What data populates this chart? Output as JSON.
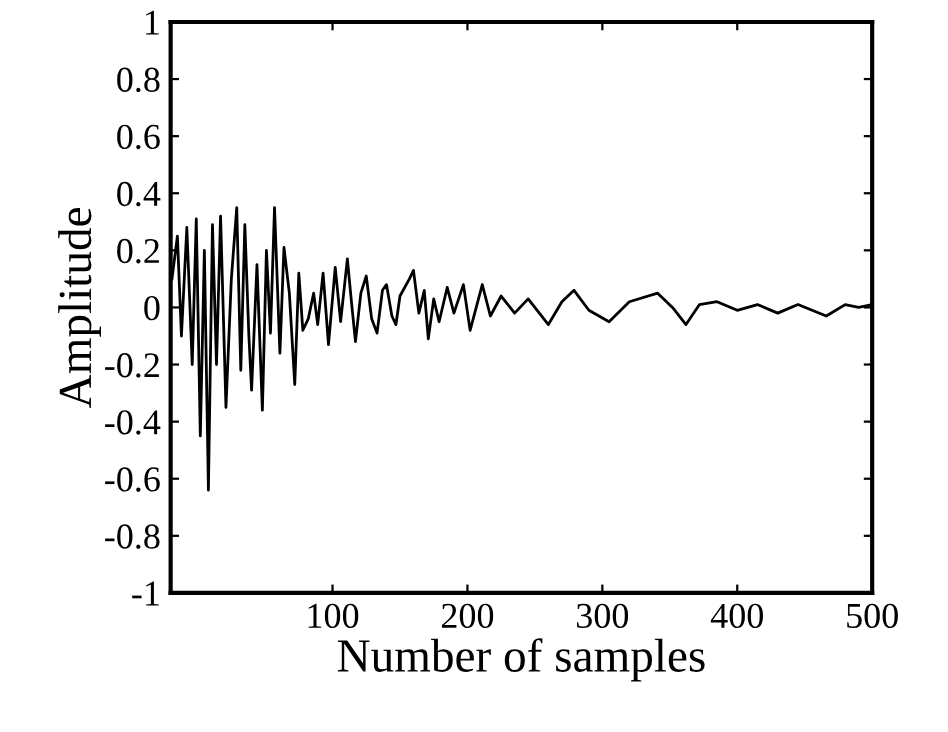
{
  "chart_data": {
    "type": "line",
    "xlabel": "Number of samples",
    "ylabel": "Amplitude",
    "xlim": [
      -20,
      500
    ],
    "ylim": [
      -1,
      1
    ],
    "xticks": [
      100,
      200,
      300,
      400,
      500
    ],
    "yticks": [
      -1,
      -0.8,
      -0.6,
      -0.4,
      -0.2,
      0,
      0.2,
      0.4,
      0.6,
      0.8,
      1
    ],
    "grid": false,
    "series": [
      {
        "color": "#000000",
        "x": [
          -19,
          -15,
          -12,
          -8,
          -4,
          -1,
          2,
          5,
          8,
          11,
          14,
          17,
          21,
          25,
          29,
          32,
          35,
          38,
          40,
          44,
          48,
          51,
          54,
          57,
          61,
          64,
          68,
          72,
          75,
          78,
          82,
          86,
          89,
          93,
          97,
          102,
          106,
          111,
          114,
          117,
          121,
          125,
          129,
          133,
          137,
          140,
          144,
          147,
          150,
          157,
          160,
          164,
          168,
          171,
          175,
          179,
          185,
          190,
          197,
          202,
          211,
          217,
          225,
          235,
          245,
          260,
          270,
          279,
          290,
          305,
          320,
          341,
          352,
          362,
          372,
          385,
          400,
          415,
          430,
          445,
          466,
          480,
          490,
          500
        ],
        "values": [
          0.1,
          0.25,
          -0.1,
          0.28,
          -0.2,
          0.31,
          -0.45,
          0.2,
          -0.64,
          0.29,
          -0.2,
          0.32,
          -0.35,
          0.1,
          0.35,
          -0.22,
          0.29,
          -0.1,
          -0.29,
          0.15,
          -0.36,
          0.2,
          -0.09,
          0.35,
          -0.16,
          0.21,
          0.05,
          -0.27,
          0.12,
          -0.08,
          -0.04,
          0.05,
          -0.06,
          0.12,
          -0.13,
          0.14,
          -0.05,
          0.17,
          0.02,
          -0.12,
          0.05,
          0.11,
          -0.04,
          -0.09,
          0.06,
          0.08,
          -0.03,
          -0.06,
          0.04,
          0.1,
          0.13,
          -0.02,
          0.06,
          -0.11,
          0.03,
          -0.05,
          0.07,
          -0.02,
          0.08,
          -0.08,
          0.08,
          -0.03,
          0.04,
          -0.02,
          0.03,
          -0.06,
          0.02,
          0.06,
          -0.01,
          -0.05,
          0.02,
          0.05,
          0.0,
          -0.06,
          0.01,
          0.02,
          -0.01,
          0.01,
          -0.02,
          0.01,
          -0.03,
          0.01,
          0.0,
          0.01
        ]
      }
    ]
  }
}
